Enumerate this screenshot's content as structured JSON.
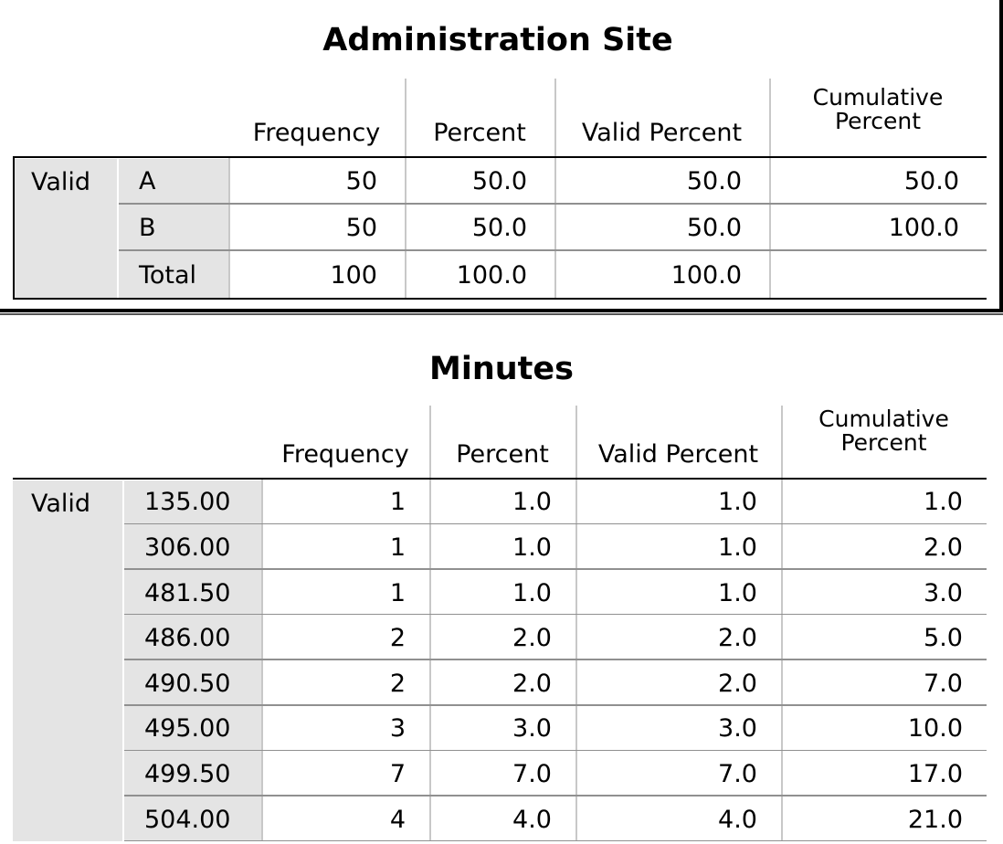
{
  "tables": [
    {
      "title": "Administration Site",
      "headers": {
        "frequency": "Frequency",
        "percent": "Percent",
        "valid_percent": "Valid Percent",
        "cumulative_percent_line1": "Cumulative",
        "cumulative_percent_line2": "Percent"
      },
      "group_label": "Valid",
      "rows": [
        {
          "label": "A",
          "frequency": "50",
          "percent": "50.0",
          "valid_percent": "50.0",
          "cumulative_percent": "50.0"
        },
        {
          "label": "B",
          "frequency": "50",
          "percent": "50.0",
          "valid_percent": "50.0",
          "cumulative_percent": "100.0"
        },
        {
          "label": "Total",
          "frequency": "100",
          "percent": "100.0",
          "valid_percent": "100.0",
          "cumulative_percent": ""
        }
      ]
    },
    {
      "title": "Minutes",
      "headers": {
        "frequency": "Frequency",
        "percent": "Percent",
        "valid_percent": "Valid Percent",
        "cumulative_percent_line1": "Cumulative",
        "cumulative_percent_line2": "Percent"
      },
      "group_label": "Valid",
      "rows": [
        {
          "label": "135.00",
          "frequency": "1",
          "percent": "1.0",
          "valid_percent": "1.0",
          "cumulative_percent": "1.0"
        },
        {
          "label": "306.00",
          "frequency": "1",
          "percent": "1.0",
          "valid_percent": "1.0",
          "cumulative_percent": "2.0"
        },
        {
          "label": "481.50",
          "frequency": "1",
          "percent": "1.0",
          "valid_percent": "1.0",
          "cumulative_percent": "3.0"
        },
        {
          "label": "486.00",
          "frequency": "2",
          "percent": "2.0",
          "valid_percent": "2.0",
          "cumulative_percent": "5.0"
        },
        {
          "label": "490.50",
          "frequency": "2",
          "percent": "2.0",
          "valid_percent": "2.0",
          "cumulative_percent": "7.0"
        },
        {
          "label": "495.00",
          "frequency": "3",
          "percent": "3.0",
          "valid_percent": "3.0",
          "cumulative_percent": "10.0"
        },
        {
          "label": "499.50",
          "frequency": "7",
          "percent": "7.0",
          "valid_percent": "7.0",
          "cumulative_percent": "17.0"
        },
        {
          "label": "504.00",
          "frequency": "4",
          "percent": "4.0",
          "valid_percent": "4.0",
          "cumulative_percent": "21.0"
        }
      ]
    }
  ]
}
